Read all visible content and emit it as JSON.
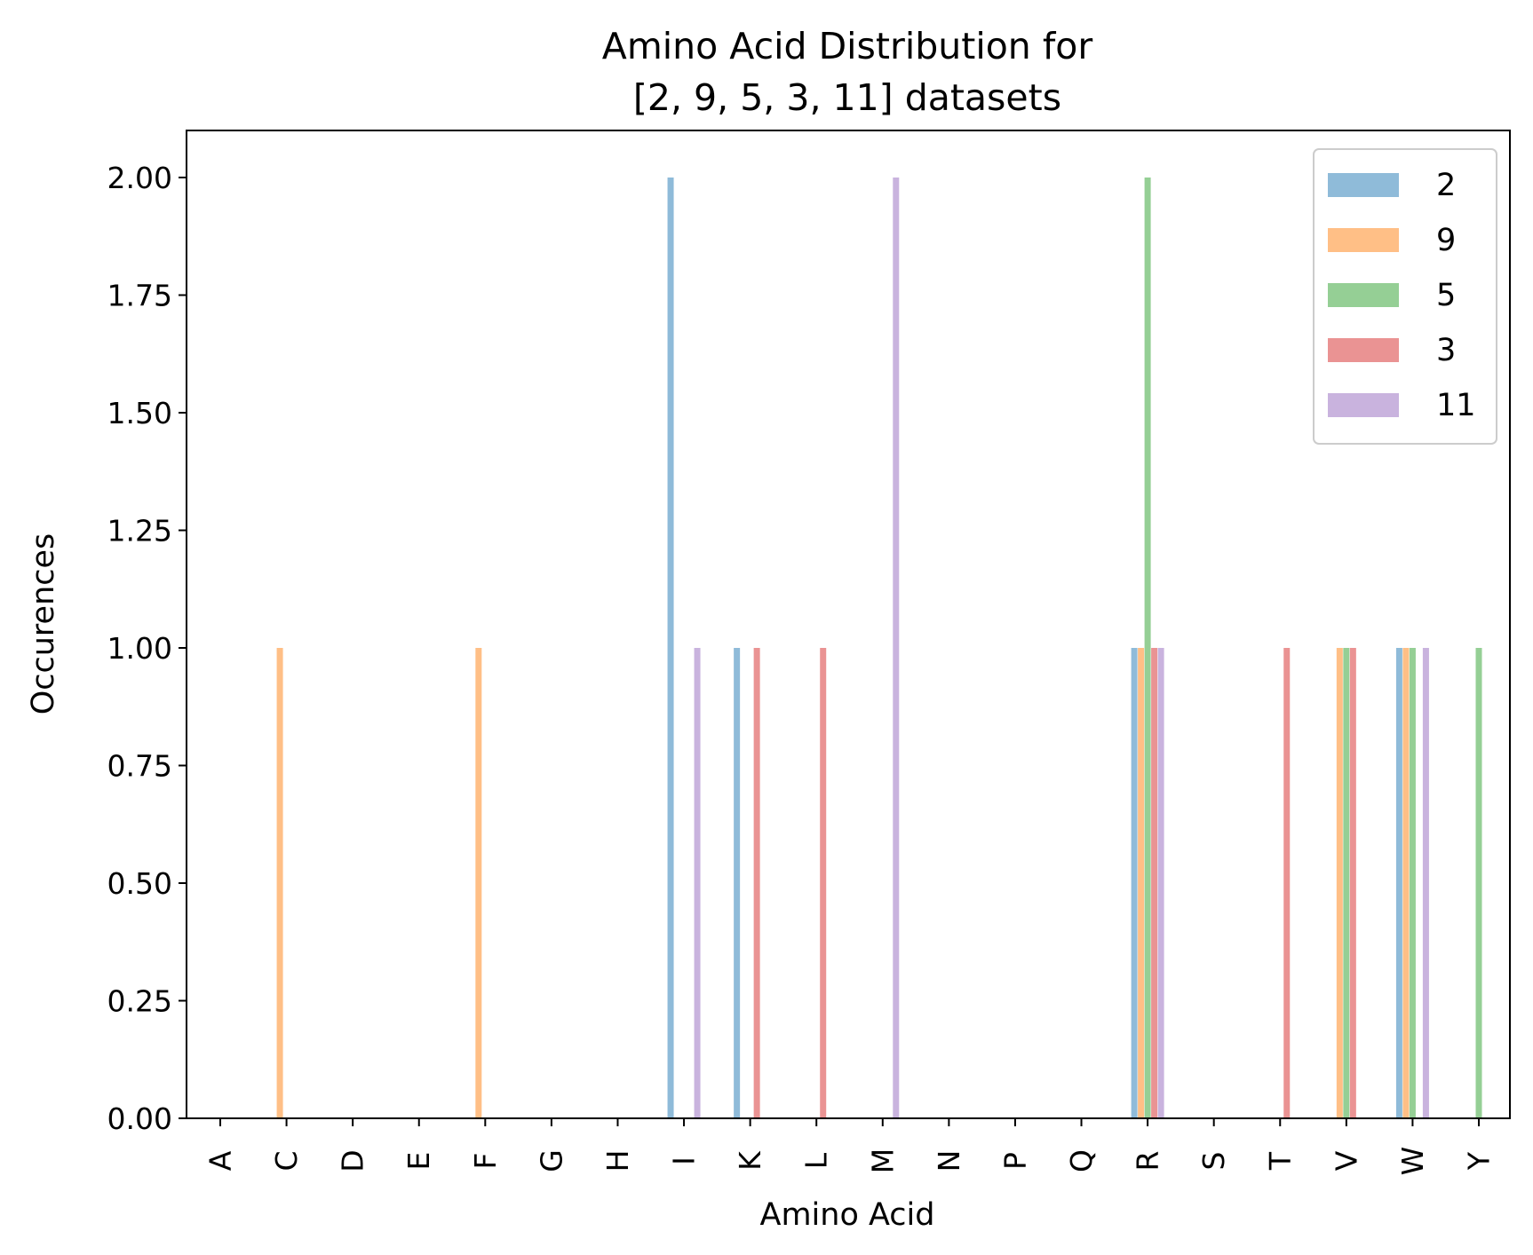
{
  "chart_data": {
    "type": "bar",
    "title_lines": [
      "Amino Acid Distribution for",
      "[2, 9, 5, 3, 11] datasets"
    ],
    "xlabel": "Amino Acid",
    "ylabel": "Occurences",
    "ylim": [
      0,
      2.1
    ],
    "yticks": [
      0.0,
      0.25,
      0.5,
      0.75,
      1.0,
      1.25,
      1.5,
      1.75,
      2.0
    ],
    "ytick_labels": [
      "0.00",
      "0.25",
      "0.50",
      "0.75",
      "1.00",
      "1.25",
      "1.50",
      "1.75",
      "2.00"
    ],
    "categories": [
      "A",
      "C",
      "D",
      "E",
      "F",
      "G",
      "H",
      "I",
      "K",
      "L",
      "M",
      "N",
      "P",
      "Q",
      "R",
      "S",
      "T",
      "V",
      "W",
      "Y"
    ],
    "grid": false,
    "legend_position": "top-right",
    "series": [
      {
        "name": "2",
        "color": "#1f77b4",
        "values": [
          0,
          0,
          0,
          0,
          0,
          0,
          0,
          2,
          1,
          0,
          0,
          0,
          0,
          0,
          1,
          0,
          0,
          0,
          1,
          0
        ]
      },
      {
        "name": "9",
        "color": "#ff7f0e",
        "values": [
          0,
          1,
          0,
          0,
          1,
          0,
          0,
          0,
          0,
          0,
          0,
          0,
          0,
          0,
          1,
          0,
          0,
          1,
          1,
          0
        ]
      },
      {
        "name": "5",
        "color": "#2ca02c",
        "values": [
          0,
          0,
          0,
          0,
          0,
          0,
          0,
          0,
          0,
          0,
          0,
          0,
          0,
          0,
          2,
          0,
          0,
          1,
          1,
          1
        ]
      },
      {
        "name": "3",
        "color": "#d62728",
        "values": [
          0,
          0,
          0,
          0,
          0,
          0,
          0,
          0,
          1,
          1,
          0,
          0,
          0,
          0,
          1,
          0,
          1,
          1,
          0,
          0
        ]
      },
      {
        "name": "11",
        "color": "#9467bd",
        "values": [
          0,
          0,
          0,
          0,
          0,
          0,
          0,
          1,
          0,
          0,
          2,
          0,
          0,
          0,
          1,
          0,
          0,
          0,
          1,
          0
        ]
      }
    ]
  }
}
